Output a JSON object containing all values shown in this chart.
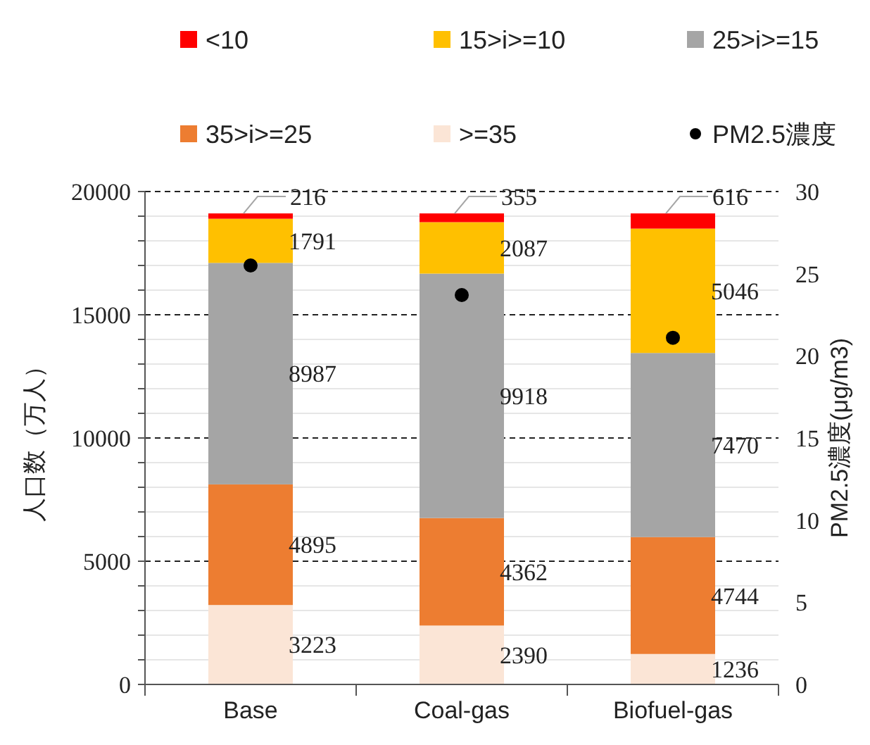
{
  "chart_data": {
    "type": "bar",
    "stacked": true,
    "categories": [
      "Base",
      "Coal-gas",
      "Biofuel-gas"
    ],
    "ylabel": "人口数（万人）",
    "y2label": "PM2.5濃度(μg/m3)",
    "ylim": [
      0,
      20000
    ],
    "yticks": [
      0,
      {
        "value": 1000,
        "label": null
      },
      {
        "value": 2000,
        "label": null
      },
      {
        "value": 3000,
        "label": null
      },
      {
        "value": 4000,
        "label": null
      },
      5000,
      {
        "value": 6000,
        "label": null
      },
      {
        "value": 7000,
        "label": null
      },
      {
        "value": 8000,
        "label": null
      },
      {
        "value": 9000,
        "label": null
      },
      10000,
      {
        "value": 11000,
        "label": null
      },
      {
        "value": 12000,
        "label": null
      },
      {
        "value": 13000,
        "label": null
      },
      {
        "value": 14000,
        "label": null
      },
      15000,
      {
        "value": 16000,
        "label": null
      },
      {
        "value": 17000,
        "label": null
      },
      {
        "value": 18000,
        "label": null
      },
      {
        "value": 19000,
        "label": null
      },
      20000
    ],
    "y2lim": [
      0,
      30
    ],
    "y2ticks": [
      0,
      5,
      10,
      15,
      20,
      25,
      30
    ],
    "grid": "y",
    "legend": "top",
    "series": [
      {
        "name": ">=35",
        "color": "#fbe5d6",
        "values": [
          3223,
          2390,
          1236
        ],
        "value_labels": [
          "3223",
          "2390",
          "1236"
        ]
      },
      {
        "name": "35>i>=25",
        "color": "#ed7d31",
        "values": [
          4895,
          4362,
          4744
        ],
        "value_labels": [
          "4895",
          "4362",
          "4744"
        ]
      },
      {
        "name": "25>i>=15",
        "color": "#a5a5a5",
        "values": [
          8987,
          9918,
          7470
        ],
        "value_labels": [
          "8987",
          "9918",
          "7470"
        ]
      },
      {
        "name": "15>i>=10",
        "color": "#ffc000",
        "values": [
          1791,
          2087,
          5046
        ],
        "value_labels": [
          "1791",
          "2087",
          "5046"
        ]
      },
      {
        "name": "<10",
        "color": "#ff0000",
        "values": [
          216,
          355,
          616
        ],
        "value_labels": [
          "216",
          "355",
          "616"
        ]
      },
      {
        "name": "PM2.5濃度",
        "type": "scatter",
        "axis": "y2",
        "marker": "circle",
        "color": "#000000",
        "x": [
          "Base",
          "Coal-gas",
          "Biofuel-gas"
        ],
        "values": [
          25.5,
          23.7,
          21.1
        ]
      }
    ]
  }
}
